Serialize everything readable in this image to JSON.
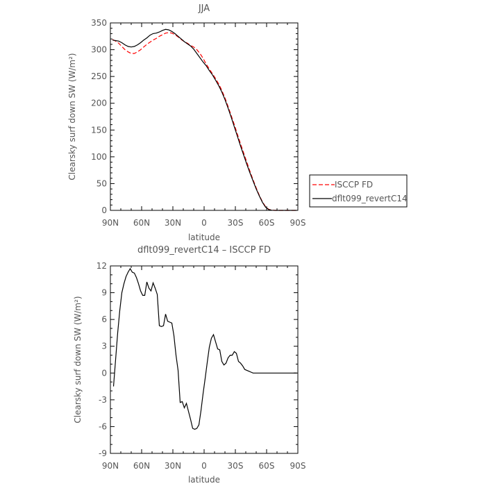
{
  "chart_data": [
    {
      "type": "line",
      "title": "JJA",
      "xlabel": "latitude",
      "ylabel": "Clearsky surf down SW (W/m²)",
      "ylim": [
        0,
        350
      ],
      "yticks": [
        0,
        50,
        100,
        150,
        200,
        250,
        300,
        350
      ],
      "xlim": [
        90,
        -90
      ],
      "xticks": [
        {
          "value": 90,
          "label": "90N"
        },
        {
          "value": 60,
          "label": "60N"
        },
        {
          "value": 30,
          "label": "30N"
        },
        {
          "value": 0,
          "label": "0"
        },
        {
          "value": -30,
          "label": "30S"
        },
        {
          "value": -60,
          "label": "60S"
        },
        {
          "value": -90,
          "label": "90S"
        }
      ],
      "grid": false,
      "legend": "right, outside plot",
      "series": [
        {
          "name": "ISCCP FD",
          "color": "#ff0000",
          "style": "dashed",
          "x": [
            88,
            85,
            82,
            79,
            76,
            73,
            70,
            67,
            64,
            61,
            58,
            55,
            52,
            49,
            46,
            43,
            40,
            37,
            34,
            31,
            28,
            25,
            22,
            19,
            16,
            13,
            10,
            7,
            4,
            1,
            -2,
            -5,
            -8,
            -11,
            -14,
            -17,
            -20,
            -23,
            -26,
            -29,
            -32,
            -35,
            -38,
            -41,
            -44,
            -47,
            -50,
            -53,
            -56,
            -59,
            -62,
            -65,
            -68,
            -71,
            -74,
            -77,
            -80,
            -83,
            -86,
            -89
          ],
          "y": [
            319,
            316,
            312,
            306,
            300,
            296,
            293,
            293,
            296,
            300,
            305,
            310,
            314,
            318,
            321,
            325,
            328,
            331,
            332,
            331,
            328,
            324,
            319,
            315,
            312,
            308,
            305,
            300,
            293,
            284,
            273,
            264,
            255,
            246,
            236,
            224,
            210,
            194,
            177,
            160,
            142,
            124,
            107,
            90,
            73,
            57,
            42,
            28,
            16,
            7,
            2,
            0.5,
            0,
            0,
            0,
            0,
            0,
            0,
            0,
            0
          ]
        },
        {
          "name": "dflt099_revertC14",
          "color": "#000000",
          "style": "solid",
          "x": [
            88,
            85,
            82,
            79,
            76,
            73,
            70,
            67,
            64,
            61,
            58,
            55,
            52,
            49,
            46,
            43,
            40,
            37,
            34,
            31,
            28,
            25,
            22,
            19,
            16,
            13,
            10,
            7,
            4,
            1,
            -2,
            -5,
            -8,
            -11,
            -14,
            -17,
            -20,
            -23,
            -26,
            -29,
            -32,
            -35,
            -38,
            -41,
            -44,
            -47,
            -50,
            -53,
            -56,
            -59,
            -62,
            -65,
            -68,
            -71,
            -74,
            -77,
            -80,
            -83,
            -86,
            -89
          ],
          "y": [
            318,
            317,
            316,
            313,
            309,
            306,
            305,
            306,
            309,
            313,
            318,
            322,
            327,
            330,
            331,
            333,
            336,
            338,
            337,
            334,
            330,
            325,
            320,
            315,
            311,
            307,
            301,
            293,
            285,
            277,
            270,
            261,
            253,
            243,
            233,
            221,
            207,
            191,
            174,
            156,
            138,
            120,
            103,
            86,
            70,
            55,
            40,
            27,
            15,
            6,
            1.5,
            0.3,
            0,
            0,
            0,
            0,
            0,
            0,
            0,
            0
          ]
        }
      ]
    },
    {
      "type": "line",
      "title": "dflt099_revertC14 – ISCCP FD",
      "xlabel": "latitude",
      "ylabel": "Clearsky surf down SW (W/m²)",
      "ylim": [
        -9,
        12
      ],
      "yticks": [
        -9,
        -6,
        -3,
        0,
        3,
        6,
        9,
        12
      ],
      "xlim": [
        90,
        -90
      ],
      "xticks": [
        {
          "value": 90,
          "label": "90N"
        },
        {
          "value": 60,
          "label": "60N"
        },
        {
          "value": 30,
          "label": "30N"
        },
        {
          "value": 0,
          "label": "0"
        },
        {
          "value": -30,
          "label": "30S"
        },
        {
          "value": -60,
          "label": "60S"
        },
        {
          "value": -90,
          "label": "90S"
        }
      ],
      "grid": false,
      "series": [
        {
          "color": "#000000",
          "style": "solid",
          "x": [
            87,
            85,
            83,
            81,
            79,
            77,
            75,
            73,
            71,
            69,
            67,
            65,
            63,
            61,
            59,
            57,
            55,
            53,
            51,
            49,
            47,
            45,
            43,
            41,
            39,
            37,
            35,
            33,
            31,
            29,
            27,
            25,
            23,
            21,
            19,
            17,
            15,
            13,
            11,
            9,
            7,
            5,
            3,
            1,
            -1,
            -3,
            -5,
            -7,
            -9,
            -11,
            -13,
            -15,
            -17,
            -19,
            -21,
            -23,
            -25,
            -27,
            -29,
            -31,
            -33,
            -35,
            -37,
            -39,
            -41,
            -43,
            -45,
            -47,
            -49,
            -51,
            -53,
            -55,
            -57,
            -59,
            -61,
            -63,
            -65,
            -67,
            -69,
            -71,
            -73,
            -75,
            -77,
            -79,
            -81,
            -83,
            -85,
            -87,
            -89
          ],
          "y": [
            -1.5,
            1.5,
            4.5,
            7,
            9,
            10,
            10.8,
            11.3,
            11.7,
            11.3,
            11.2,
            10.7,
            10,
            9.2,
            8.7,
            8.7,
            10.2,
            9.5,
            9.2,
            10.1,
            9.5,
            8.8,
            5.3,
            5.2,
            5.3,
            6.6,
            5.8,
            5.7,
            5.6,
            4.2,
            2,
            0.3,
            -3.3,
            -3.2,
            -3.9,
            -3.4,
            -4.3,
            -5.2,
            -6.2,
            -6.3,
            -6.2,
            -5.8,
            -4.2,
            -2.3,
            -0.6,
            1.2,
            2.9,
            3.9,
            4.3,
            3.5,
            2.7,
            2.6,
            1.3,
            0.9,
            1.1,
            1.7,
            2,
            2,
            2.4,
            2.2,
            1.3,
            1.1,
            0.8,
            0.4,
            0.3,
            0.2,
            0.1,
            0,
            0,
            0,
            0,
            0,
            0,
            0,
            0,
            0,
            0,
            0,
            0,
            0,
            0,
            0,
            0,
            0,
            0,
            0,
            0,
            0,
            0
          ]
        }
      ]
    }
  ]
}
